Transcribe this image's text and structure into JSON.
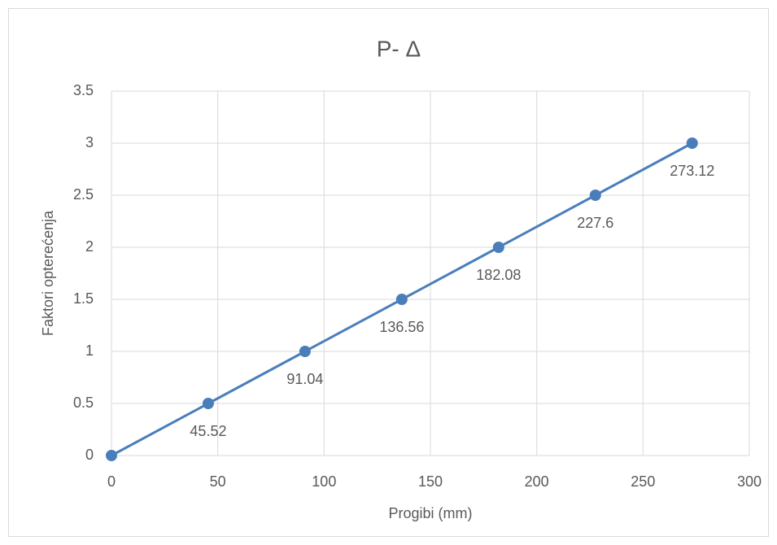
{
  "chart_data": {
    "type": "line",
    "title": "P- Δ",
    "x_label": "Progibi (mm)",
    "y_label": "Faktori opterećenja",
    "x": [
      0,
      45.52,
      91.04,
      136.56,
      182.08,
      227.6,
      273.12
    ],
    "values": [
      0,
      0.5,
      1,
      1.5,
      2,
      2.5,
      3
    ],
    "color": "#4a7ebb",
    "xlim": [
      0,
      300
    ],
    "xticks": [
      0,
      50,
      100,
      150,
      200,
      250,
      300
    ],
    "ylim": [
      0,
      3.5
    ],
    "yticks": [
      0,
      0.5,
      1,
      1.5,
      2,
      2.5,
      3,
      3.5
    ],
    "grid": true,
    "markers": true
  }
}
